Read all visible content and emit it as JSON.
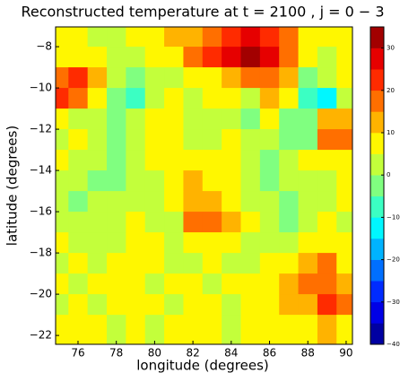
{
  "chart_data": {
    "type": "contourf",
    "title": "Reconstructed temperature at t = 2100 , j = 0 − 3",
    "x_label": "longitude (degrees)",
    "y_label": "latitude (degrees)",
    "x": [
      75,
      76,
      77,
      78,
      79,
      80,
      81,
      82,
      83,
      84,
      85,
      86,
      87,
      88,
      89,
      90
    ],
    "y": [
      -7.5,
      -8.5,
      -9.5,
      -10.5,
      -11.5,
      -12.5,
      -13.5,
      -14.5,
      -15.5,
      -16.5,
      -17.5,
      -18.5,
      -19.5,
      -20.5,
      -21.5
    ],
    "z": [
      [
        5,
        5,
        3,
        3,
        5,
        7,
        10,
        12,
        15,
        20,
        25,
        22,
        15,
        8,
        5,
        5
      ],
      [
        5,
        8,
        5,
        3,
        2,
        5,
        8,
        15,
        20,
        25,
        30,
        25,
        15,
        5,
        3,
        8
      ],
      [
        18,
        22,
        10,
        3,
        -3,
        0,
        3,
        5,
        8,
        10,
        15,
        18,
        10,
        -5,
        0,
        5
      ],
      [
        20,
        15,
        5,
        -5,
        -8,
        3,
        5,
        2,
        5,
        5,
        3,
        10,
        5,
        -10,
        -15,
        0
      ],
      [
        5,
        3,
        0,
        -5,
        3,
        5,
        5,
        0,
        3,
        0,
        -3,
        5,
        -5,
        -5,
        10,
        12
      ],
      [
        3,
        5,
        3,
        -3,
        0,
        5,
        8,
        3,
        0,
        5,
        3,
        0,
        -3,
        -3,
        15,
        18
      ],
      [
        5,
        3,
        0,
        -5,
        3,
        5,
        8,
        8,
        5,
        8,
        3,
        -5,
        0,
        5,
        5,
        8
      ],
      [
        3,
        0,
        -3,
        -3,
        0,
        3,
        8,
        10,
        8,
        5,
        0,
        -3,
        0,
        3,
        3,
        5
      ],
      [
        0,
        -3,
        0,
        0,
        3,
        3,
        8,
        12,
        10,
        8,
        3,
        0,
        -3,
        0,
        3,
        5
      ],
      [
        3,
        0,
        3,
        3,
        5,
        3,
        3,
        15,
        18,
        10,
        5,
        0,
        -3,
        3,
        5,
        3
      ],
      [
        5,
        3,
        0,
        3,
        5,
        5,
        3,
        5,
        8,
        5,
        3,
        3,
        0,
        5,
        8,
        5
      ],
      [
        3,
        5,
        3,
        5,
        8,
        5,
        3,
        3,
        5,
        3,
        3,
        5,
        5,
        12,
        15,
        8
      ],
      [
        5,
        3,
        5,
        8,
        5,
        3,
        5,
        5,
        3,
        5,
        8,
        5,
        10,
        15,
        15,
        10
      ],
      [
        3,
        5,
        3,
        5,
        5,
        5,
        3,
        8,
        5,
        3,
        5,
        8,
        10,
        12,
        20,
        15
      ],
      [
        5,
        8,
        5,
        3,
        5,
        3,
        5,
        5,
        5,
        3,
        5,
        8,
        5,
        8,
        10,
        8
      ]
    ],
    "levels": [
      -40,
      -35,
      -30,
      -25,
      -20,
      -15,
      -10,
      -5,
      0,
      5,
      10,
      15,
      20,
      25,
      30,
      35
    ],
    "colors": [
      "#0000a2",
      "#0000e6",
      "#002bff",
      "#006fff",
      "#00b3ff",
      "#00f7ff",
      "#3bffc3",
      "#80ff80",
      "#c3ff3b",
      "#fff700",
      "#ffb300",
      "#ff6f00",
      "#ff2b00",
      "#e60000",
      "#a20000"
    ],
    "xlim": [
      74.83,
      90.33
    ],
    "ylim": [
      -22.43,
      -7.04
    ],
    "xticks": [
      76,
      78,
      80,
      82,
      84,
      86,
      88,
      90
    ],
    "yticks": [
      {
        "value": -22,
        "label": "−22"
      },
      {
        "value": -20,
        "label": "−20"
      },
      {
        "value": -18,
        "label": "−18"
      },
      {
        "value": -16,
        "label": "−16"
      },
      {
        "value": -14,
        "label": "−14"
      },
      {
        "value": -12,
        "label": "−12"
      },
      {
        "value": -10,
        "label": "−10"
      },
      {
        "value": -8,
        "label": "−8"
      }
    ],
    "cbar_ticks": [
      {
        "value": -40,
        "label": "−40"
      },
      {
        "value": -30,
        "label": "−30"
      },
      {
        "value": -20,
        "label": "−20"
      },
      {
        "value": -10,
        "label": "−10"
      },
      0,
      10,
      20,
      30
    ]
  }
}
